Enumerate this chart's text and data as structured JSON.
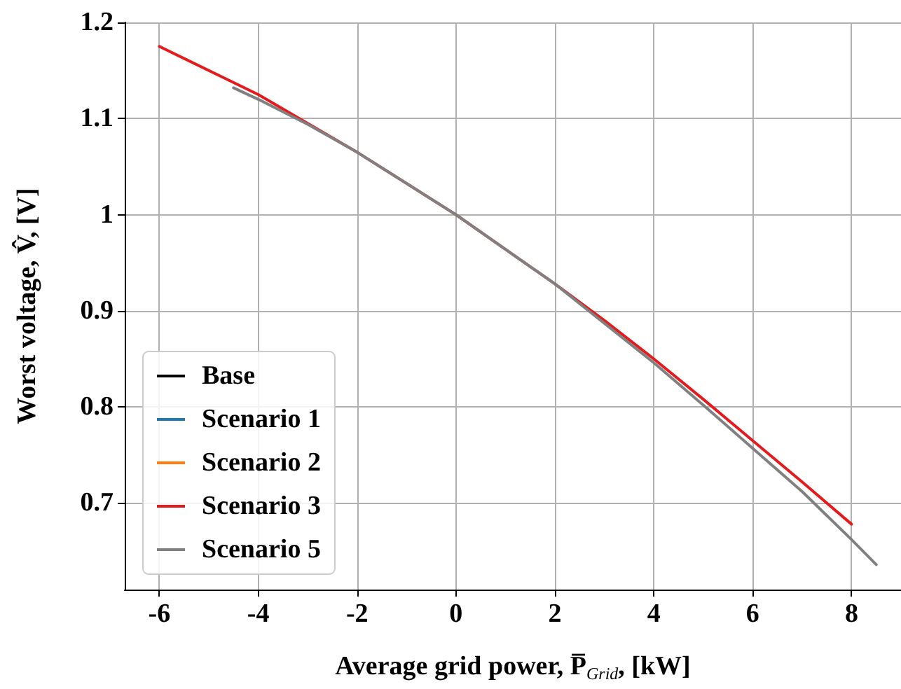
{
  "chart_data": {
    "type": "line",
    "xlabel": "Average grid power, P̅$_{Grid}$, [kW]",
    "ylabel": "Worst voltage, V̂, [V]",
    "xlim": [
      -6.7,
      9.0
    ],
    "xticks": [
      -6,
      -4,
      -2,
      0,
      2,
      4,
      6,
      8
    ],
    "ylim": [
      0.61,
      1.2
    ],
    "yticks": [
      0.7,
      0.8,
      0.9,
      1.0,
      1.1,
      1.2
    ],
    "grid": true,
    "legend": "bottom left",
    "marker": "none",
    "line_style": "solid",
    "series": [
      {
        "name": "Base",
        "color": "#000000"
      },
      {
        "name": "Scenario 1",
        "color": "#1f77b4"
      },
      {
        "name": "Scenario 2",
        "color": "#ff7f0e"
      },
      {
        "name": "Scenario 3",
        "color": "#e41a1c",
        "x": [
          -6,
          -4,
          -2,
          0,
          2,
          3,
          4,
          5,
          6,
          7,
          8
        ],
        "values": [
          1.175,
          1.125,
          1.065,
          1.0,
          0.928,
          0.89,
          0.85,
          0.808,
          0.765,
          0.722,
          0.678
        ]
      },
      {
        "name": "Scenario 5",
        "color": "#808080",
        "x": [
          -4.5,
          -4,
          -3,
          -2,
          0,
          2,
          3,
          4,
          5,
          6,
          7,
          8,
          8.5
        ],
        "values": [
          1.132,
          1.12,
          1.094,
          1.065,
          1.0,
          0.928,
          0.887,
          0.846,
          0.802,
          0.757,
          0.712,
          0.662,
          0.636
        ]
      }
    ]
  }
}
